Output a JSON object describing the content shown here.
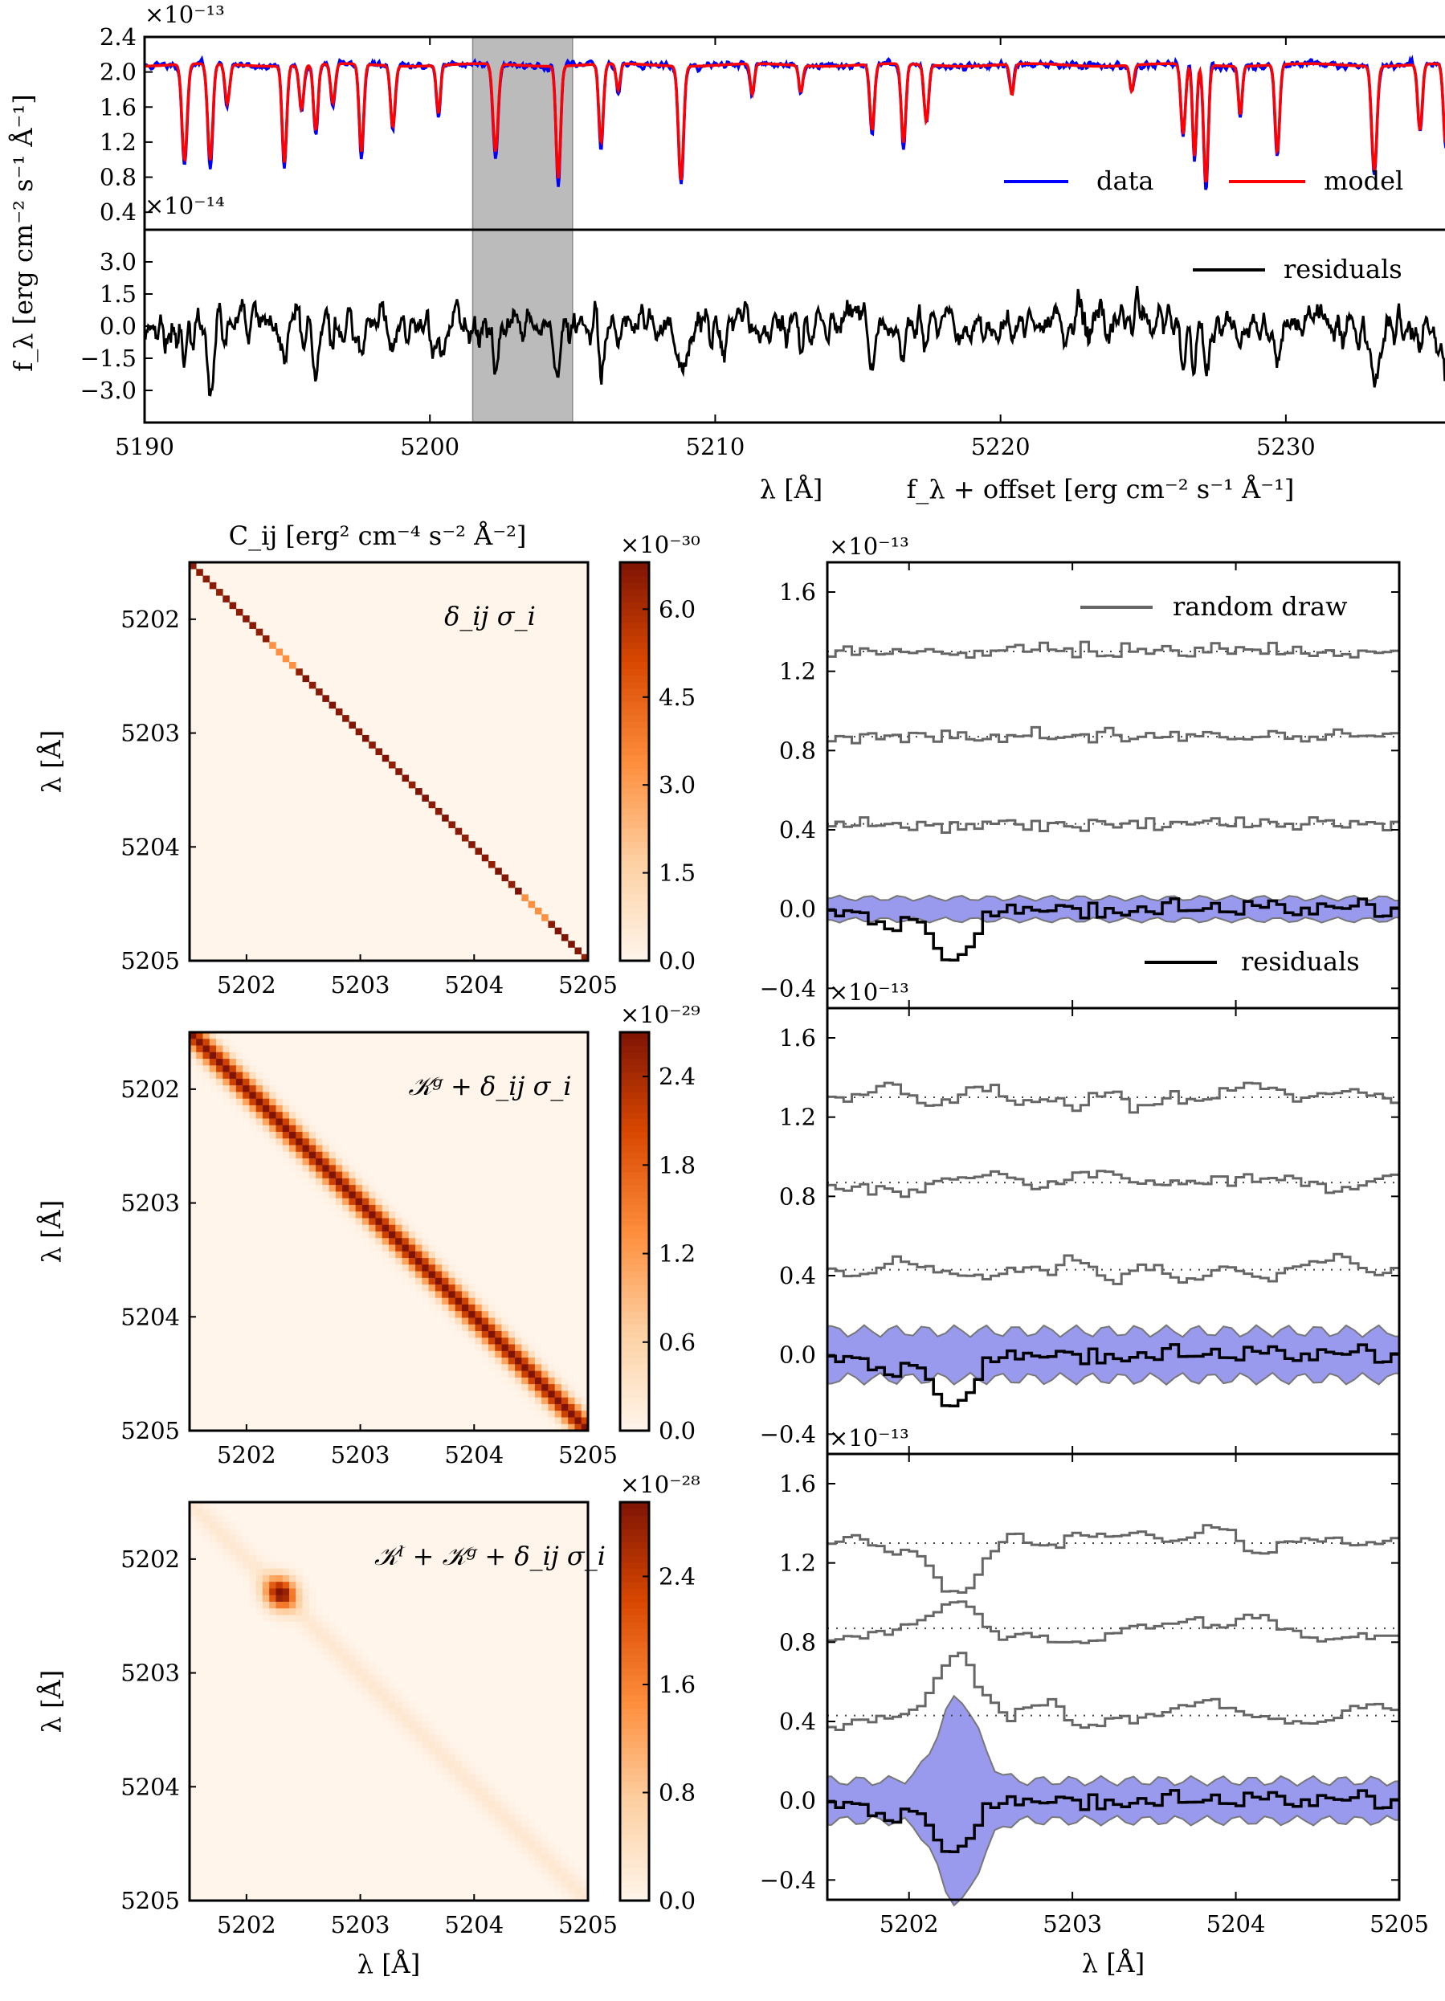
{
  "colors": {
    "data": "#0000ff",
    "model": "#ff0000",
    "residuals": "#000000",
    "draw": "#666666",
    "band": "#9999ee",
    "shade": "#bbbbbb"
  },
  "chart_data": [
    {
      "type": "line",
      "panel": "spectrum-top",
      "scale_label": "×10⁻¹³",
      "xlim": [
        5190,
        5236
      ],
      "ylim": [
        0.2,
        2.4
      ],
      "yticks": [
        "0.4",
        "0.8",
        "1.2",
        "1.6",
        "2.0",
        "2.4"
      ],
      "continuum": 2.08,
      "shaded_region": [
        5201.5,
        5205.0
      ],
      "lines": [
        {
          "x": 5191.4,
          "depth": 1.1,
          "w": 0.09
        },
        {
          "x": 5192.3,
          "depth": 1.1,
          "w": 0.09
        },
        {
          "x": 5192.9,
          "depth": 0.45,
          "w": 0.08
        },
        {
          "x": 5194.9,
          "depth": 1.1,
          "w": 0.08
        },
        {
          "x": 5195.5,
          "depth": 0.5,
          "w": 0.08
        },
        {
          "x": 5196.0,
          "depth": 0.75,
          "w": 0.08
        },
        {
          "x": 5196.6,
          "depth": 0.45,
          "w": 0.08
        },
        {
          "x": 5197.6,
          "depth": 1.0,
          "w": 0.08
        },
        {
          "x": 5198.7,
          "depth": 0.7,
          "w": 0.08
        },
        {
          "x": 5200.3,
          "depth": 0.55,
          "w": 0.07
        },
        {
          "x": 5202.3,
          "depth": 1.0,
          "w": 0.09
        },
        {
          "x": 5204.5,
          "depth": 1.28,
          "w": 0.08
        },
        {
          "x": 5206.0,
          "depth": 0.9,
          "w": 0.08
        },
        {
          "x": 5206.6,
          "depth": 0.3,
          "w": 0.07
        },
        {
          "x": 5208.8,
          "depth": 1.3,
          "w": 0.09
        },
        {
          "x": 5211.3,
          "depth": 0.35,
          "w": 0.07
        },
        {
          "x": 5213.0,
          "depth": 0.3,
          "w": 0.07
        },
        {
          "x": 5215.5,
          "depth": 0.75,
          "w": 0.08
        },
        {
          "x": 5216.6,
          "depth": 0.9,
          "w": 0.08
        },
        {
          "x": 5217.4,
          "depth": 0.65,
          "w": 0.08
        },
        {
          "x": 5220.4,
          "depth": 0.35,
          "w": 0.07
        },
        {
          "x": 5224.6,
          "depth": 0.3,
          "w": 0.07
        },
        {
          "x": 5226.4,
          "depth": 0.8,
          "w": 0.08
        },
        {
          "x": 5226.8,
          "depth": 1.05,
          "w": 0.07
        },
        {
          "x": 5227.2,
          "depth": 1.35,
          "w": 0.08
        },
        {
          "x": 5228.4,
          "depth": 0.55,
          "w": 0.07
        },
        {
          "x": 5229.7,
          "depth": 1.0,
          "w": 0.08
        },
        {
          "x": 5233.1,
          "depth": 1.2,
          "w": 0.09
        },
        {
          "x": 5234.7,
          "depth": 0.75,
          "w": 0.08
        },
        {
          "x": 5235.6,
          "depth": 0.9,
          "w": 0.08
        }
      ],
      "legend": {
        "data": "data",
        "model": "model"
      }
    },
    {
      "type": "line",
      "panel": "residuals-top",
      "scale_label": "×10⁻¹⁴",
      "xlim": [
        5190,
        5236
      ],
      "ylim": [
        -4.5,
        4.5
      ],
      "yticks": [
        "−3.0",
        "−1.5",
        "0.0",
        "1.5",
        "3.0"
      ],
      "xticks": [
        "5190",
        "5200",
        "5210",
        "5220",
        "5230"
      ],
      "legend": "residuals",
      "ylabel": "f_λ  [erg cm⁻² s⁻¹ Å⁻¹]",
      "xlabel": "λ [Å]"
    },
    {
      "type": "heatmap",
      "panel": "cov-1",
      "colorbar_scale": "×10⁻³⁰",
      "colorbar_ticks": [
        "0.0",
        "1.5",
        "3.0",
        "4.5",
        "6.0"
      ],
      "cmax": 6.8,
      "label": "δ_ij σ_i",
      "xlim": [
        5201.5,
        5205.0
      ],
      "ticks": [
        "5202",
        "5203",
        "5204",
        "5205"
      ],
      "ylabel": "λ [Å]"
    },
    {
      "type": "heatmap",
      "panel": "cov-2",
      "colorbar_scale": "×10⁻²⁹",
      "colorbar_ticks": [
        "0.0",
        "0.6",
        "1.2",
        "1.8",
        "2.4"
      ],
      "cmax": 2.7,
      "label": "𝒦ᵍ + δ_ij σ_i",
      "xlim": [
        5201.5,
        5205.0
      ],
      "ticks": [
        "5202",
        "5203",
        "5204",
        "5205"
      ],
      "ylabel": "λ [Å]"
    },
    {
      "type": "heatmap",
      "panel": "cov-3",
      "colorbar_scale": "×10⁻²⁸",
      "colorbar_ticks": [
        "0.0",
        "0.8",
        "1.6",
        "2.4"
      ],
      "cmax": 2.95,
      "label": "𝒦ˡ + 𝒦ᵍ + δ_ij σ_i",
      "xlim": [
        5201.5,
        5205.0
      ],
      "ticks": [
        "5202",
        "5203",
        "5204",
        "5205"
      ],
      "ylabel": "λ [Å]",
      "xlabel": "λ [Å]"
    },
    {
      "type": "line",
      "panel": "draws-1",
      "scale_label": "×10⁻¹³",
      "xlim": [
        5201.5,
        5205.0
      ],
      "ylim": [
        -0.5,
        1.75
      ],
      "yticks": [
        "−0.4",
        "0.0",
        "0.4",
        "0.8",
        "1.2",
        "1.6"
      ],
      "offsets": [
        1.3,
        0.87,
        0.43
      ],
      "legend_draw": "random draw",
      "legend_resid": "residuals",
      "band_sigma": 0.055
    },
    {
      "type": "line",
      "panel": "draws-2",
      "scale_label": "×10⁻¹³",
      "xlim": [
        5201.5,
        5205.0
      ],
      "ylim": [
        -0.5,
        1.75
      ],
      "yticks": [
        "−0.4",
        "0.0",
        "0.4",
        "0.8",
        "1.2",
        "1.6"
      ],
      "offsets": [
        1.3,
        0.87,
        0.43
      ],
      "band_sigma": 0.12
    },
    {
      "type": "line",
      "panel": "draws-3",
      "scale_label": "×10⁻¹³",
      "xlim": [
        5201.5,
        5205.0
      ],
      "ylim": [
        -0.5,
        1.75
      ],
      "yticks": [
        "−0.4",
        "0.0",
        "0.4",
        "0.8",
        "1.2",
        "1.6"
      ],
      "offsets": [
        1.3,
        0.87,
        0.43
      ],
      "band_sigma": 0.1,
      "xticks": [
        "5202",
        "5203",
        "5204",
        "5205"
      ],
      "xlabel": "λ [Å]"
    }
  ],
  "labels": {
    "mid_xlabel": "λ [Å]",
    "mid_offset_label": "f_λ + offset    [erg cm⁻² s⁻¹ Å⁻¹]",
    "cov_title": "C_ij    [erg² cm⁻⁴ s⁻² Å⁻²]"
  }
}
